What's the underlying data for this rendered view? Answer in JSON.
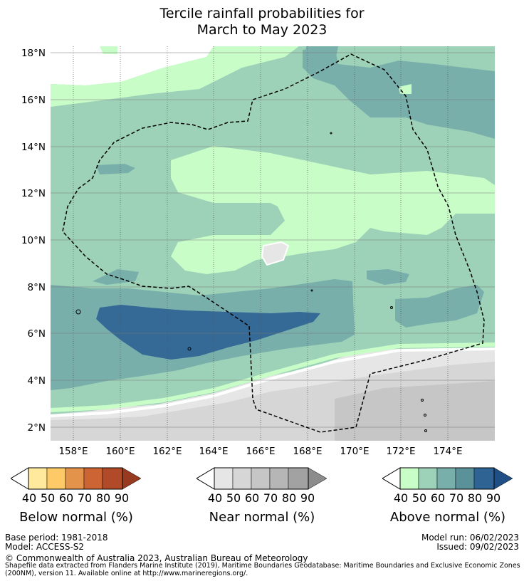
{
  "title": {
    "line1": "Tercile rainfall probabilities for",
    "line2": "March to May 2023"
  },
  "map": {
    "lat_labels": [
      "18°N",
      "16°N",
      "14°N",
      "12°N",
      "10°N",
      "8°N",
      "6°N",
      "4°N",
      "2°N"
    ],
    "lon_labels": [
      "158°E",
      "160°E",
      "162°E",
      "164°E",
      "166°E",
      "168°E",
      "170°E",
      "172°E",
      "174°E"
    ]
  },
  "colorbars": [
    {
      "name": "below",
      "label": "Below normal (%)",
      "ticks": [
        "40",
        "50",
        "60",
        "70",
        "80",
        "90"
      ],
      "colors": [
        "#fee99c",
        "#fdca67",
        "#e3944a",
        "#cc6434",
        "#b04a28",
        "#983a20"
      ]
    },
    {
      "name": "near",
      "label": "Near normal (%)",
      "ticks": [
        "40",
        "50",
        "60",
        "70",
        "80",
        "90"
      ],
      "colors": [
        "#e6e6e6",
        "#d6d6d6",
        "#c6c6c6",
        "#b6b6b6",
        "#a2a2a2",
        "#8c8c8c"
      ]
    },
    {
      "name": "above",
      "label": "Above normal (%)",
      "ticks": [
        "40",
        "50",
        "60",
        "70",
        "80",
        "90"
      ],
      "colors": [
        "#c8fdc8",
        "#9dd2b8",
        "#79afab",
        "#5b9199",
        "#2f6394",
        "#1f4f85"
      ]
    }
  ],
  "footer": {
    "base_period": "Base period: 1981-2018",
    "model": "Model: ACCESS-S2",
    "model_run": "Model run: 06/02/2023",
    "issued": "Issued: 09/02/2023",
    "copyright": "© Commonwealth of Australia 2023, Australian Bureau of Meteorology",
    "shapefile_line1": "Shapefile data extracted from Flanders Marine Institute (2019), Maritime Boundaries Geodatabase: Maritime Boundaries and Exclusive Economic Zones",
    "shapefile_line2": "(200NM), version 11. Available online at http://www.marineregions.org/."
  }
}
